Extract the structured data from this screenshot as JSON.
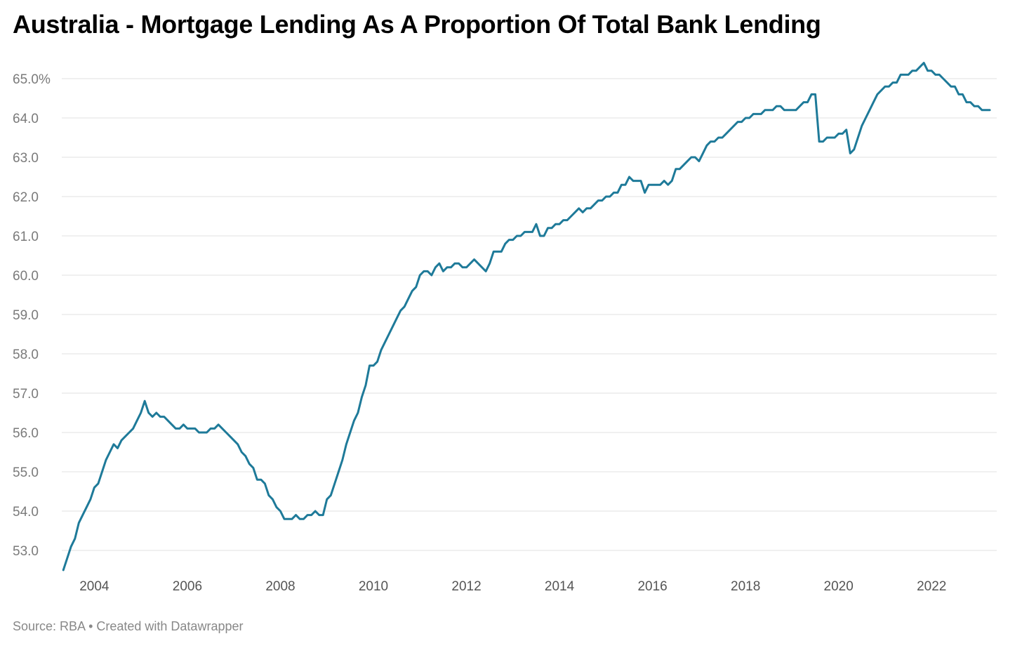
{
  "title": "Australia - Mortgage Lending As A Proportion Of Total Bank Lending",
  "footer": {
    "source": "Source: RBA",
    "separator": " • ",
    "credit": "Created with Datawrapper"
  },
  "colors": {
    "line": "#1e7a99",
    "grid": "#e0e0e0",
    "axis_text": "#7a7a7a"
  },
  "chart_data": {
    "type": "line",
    "x_start": "2003-05",
    "x_step": "month",
    "xlim": [
      2003.3,
      2023.4
    ],
    "ylim": [
      52.5,
      65.5
    ],
    "x_ticks": [
      {
        "value": 2004,
        "label": "2004"
      },
      {
        "value": 2006,
        "label": "2006"
      },
      {
        "value": 2008,
        "label": "2008"
      },
      {
        "value": 2010,
        "label": "2010"
      },
      {
        "value": 2012,
        "label": "2012"
      },
      {
        "value": 2014,
        "label": "2014"
      },
      {
        "value": 2016,
        "label": "2016"
      },
      {
        "value": 2018,
        "label": "2018"
      },
      {
        "value": 2020,
        "label": "2020"
      },
      {
        "value": 2022,
        "label": "2022"
      }
    ],
    "y_ticks": [
      {
        "value": 53,
        "label": "53.0"
      },
      {
        "value": 54,
        "label": "54.0"
      },
      {
        "value": 55,
        "label": "55.0"
      },
      {
        "value": 56,
        "label": "56.0"
      },
      {
        "value": 57,
        "label": "57.0"
      },
      {
        "value": 58,
        "label": "58.0"
      },
      {
        "value": 59,
        "label": "59.0"
      },
      {
        "value": 60,
        "label": "60.0"
      },
      {
        "value": 61,
        "label": "61.0"
      },
      {
        "value": 62,
        "label": "62.0"
      },
      {
        "value": 63,
        "label": "63.0"
      },
      {
        "value": 64,
        "label": "64.0"
      },
      {
        "value": 65,
        "label": "65.0%"
      }
    ],
    "grid": true,
    "legend": "none",
    "series": [
      {
        "values": [
          52.5,
          52.8,
          53.1,
          53.3,
          53.7,
          53.9,
          54.1,
          54.3,
          54.6,
          54.7,
          55.0,
          55.3,
          55.5,
          55.7,
          55.6,
          55.8,
          55.9,
          56.0,
          56.1,
          56.3,
          56.5,
          56.8,
          56.5,
          56.4,
          56.5,
          56.4,
          56.4,
          56.3,
          56.2,
          56.1,
          56.1,
          56.2,
          56.1,
          56.1,
          56.1,
          56.0,
          56.0,
          56.0,
          56.1,
          56.1,
          56.2,
          56.1,
          56.0,
          55.9,
          55.8,
          55.7,
          55.5,
          55.4,
          55.2,
          55.1,
          54.8,
          54.8,
          54.7,
          54.4,
          54.3,
          54.1,
          54.0,
          53.8,
          53.8,
          53.8,
          53.9,
          53.8,
          53.8,
          53.9,
          53.9,
          54.0,
          53.9,
          53.9,
          54.3,
          54.4,
          54.7,
          55.0,
          55.3,
          55.7,
          56.0,
          56.3,
          56.5,
          56.9,
          57.2,
          57.7,
          57.7,
          57.8,
          58.1,
          58.3,
          58.5,
          58.7,
          58.9,
          59.1,
          59.2,
          59.4,
          59.6,
          59.7,
          60.0,
          60.1,
          60.1,
          60.0,
          60.2,
          60.3,
          60.1,
          60.2,
          60.2,
          60.3,
          60.3,
          60.2,
          60.2,
          60.3,
          60.4,
          60.3,
          60.2,
          60.1,
          60.3,
          60.6,
          60.6,
          60.6,
          60.8,
          60.9,
          60.9,
          61.0,
          61.0,
          61.1,
          61.1,
          61.1,
          61.3,
          61.0,
          61.0,
          61.2,
          61.2,
          61.3,
          61.3,
          61.4,
          61.4,
          61.5,
          61.6,
          61.7,
          61.6,
          61.7,
          61.7,
          61.8,
          61.9,
          61.9,
          62.0,
          62.0,
          62.1,
          62.1,
          62.3,
          62.3,
          62.5,
          62.4,
          62.4,
          62.4,
          62.1,
          62.3,
          62.3,
          62.3,
          62.3,
          62.4,
          62.3,
          62.4,
          62.7,
          62.7,
          62.8,
          62.9,
          63.0,
          63.0,
          62.9,
          63.1,
          63.3,
          63.4,
          63.4,
          63.5,
          63.5,
          63.6,
          63.7,
          63.8,
          63.9,
          63.9,
          64.0,
          64.0,
          64.1,
          64.1,
          64.1,
          64.2,
          64.2,
          64.2,
          64.3,
          64.3,
          64.2,
          64.2,
          64.2,
          64.2,
          64.3,
          64.4,
          64.4,
          64.6,
          64.6,
          63.4,
          63.4,
          63.5,
          63.5,
          63.5,
          63.6,
          63.6,
          63.7,
          63.1,
          63.2,
          63.5,
          63.8,
          64.0,
          64.2,
          64.4,
          64.6,
          64.7,
          64.8,
          64.8,
          64.9,
          64.9,
          65.1,
          65.1,
          65.1,
          65.2,
          65.2,
          65.3,
          65.4,
          65.2,
          65.2,
          65.1,
          65.1,
          65.0,
          64.9,
          64.8,
          64.8,
          64.6,
          64.6,
          64.4,
          64.4,
          64.3,
          64.3,
          64.2,
          64.2,
          64.2
        ]
      }
    ]
  }
}
